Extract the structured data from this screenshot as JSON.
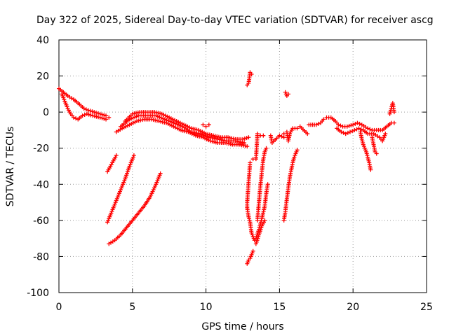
{
  "chart_data": {
    "type": "scatter",
    "title": "Day 322 of 2025, Sidereal Day-to-day VTEC variation (SDTVAR) for receiver ascg",
    "xlabel": "GPS time / hours",
    "ylabel": "SDTVAR / TECUs",
    "xlim": [
      0,
      25
    ],
    "ylim": [
      -100,
      40
    ],
    "xticks": [
      0,
      5,
      10,
      15,
      20,
      25
    ],
    "yticks": [
      -100,
      -80,
      -60,
      -40,
      -20,
      0,
      20,
      40
    ],
    "grid": true,
    "marker": "+",
    "color": "#ff0000",
    "segments": [
      {
        "name": "start-descent",
        "points": [
          [
            0.0,
            13
          ],
          [
            0.3,
            11
          ],
          [
            0.6,
            9
          ],
          [
            1.0,
            7
          ],
          [
            1.3,
            5
          ],
          [
            1.7,
            2
          ],
          [
            2.0,
            1
          ],
          [
            2.4,
            0
          ],
          [
            2.8,
            -1
          ],
          [
            3.2,
            -2
          ],
          [
            3.4,
            -3
          ]
        ]
      },
      {
        "name": "start-lower",
        "points": [
          [
            0.2,
            10
          ],
          [
            0.4,
            6
          ],
          [
            0.6,
            2
          ],
          [
            0.8,
            -1
          ],
          [
            1.0,
            -3
          ],
          [
            1.3,
            -4
          ],
          [
            1.6,
            -2
          ],
          [
            1.9,
            -1
          ],
          [
            2.3,
            -2
          ],
          [
            2.8,
            -3
          ],
          [
            3.2,
            -4
          ]
        ]
      },
      {
        "name": "morning-band-upper",
        "points": [
          [
            4.5,
            -5
          ],
          [
            5.0,
            -1
          ],
          [
            5.5,
            0
          ],
          [
            6.0,
            0
          ],
          [
            6.5,
            0
          ],
          [
            7.0,
            -1
          ],
          [
            7.5,
            -3
          ],
          [
            8.0,
            -5
          ],
          [
            8.5,
            -7
          ],
          [
            9.0,
            -9
          ],
          [
            9.5,
            -10
          ],
          [
            10.0,
            -12
          ],
          [
            10.5,
            -13
          ],
          [
            11.0,
            -14
          ],
          [
            11.5,
            -14
          ],
          [
            12.0,
            -15
          ],
          [
            12.5,
            -15
          ],
          [
            12.9,
            -14
          ]
        ]
      },
      {
        "name": "morning-band-lower",
        "points": [
          [
            3.9,
            -11
          ],
          [
            4.3,
            -9
          ],
          [
            4.8,
            -7
          ],
          [
            5.3,
            -5
          ],
          [
            5.8,
            -4
          ],
          [
            6.3,
            -4
          ],
          [
            6.8,
            -5
          ],
          [
            7.3,
            -6
          ],
          [
            7.8,
            -8
          ],
          [
            8.3,
            -10
          ],
          [
            8.8,
            -11
          ],
          [
            9.3,
            -13
          ],
          [
            9.8,
            -14
          ],
          [
            10.3,
            -16
          ],
          [
            10.8,
            -17
          ],
          [
            11.3,
            -17
          ],
          [
            11.8,
            -18
          ],
          [
            12.3,
            -18
          ],
          [
            12.8,
            -19
          ]
        ]
      },
      {
        "name": "morning-band-mid",
        "points": [
          [
            4.2,
            -8
          ],
          [
            4.8,
            -4
          ],
          [
            5.4,
            -2
          ],
          [
            6.0,
            -2
          ],
          [
            6.6,
            -2
          ],
          [
            7.2,
            -4
          ],
          [
            7.8,
            -6
          ],
          [
            8.4,
            -8
          ],
          [
            9.0,
            -11
          ],
          [
            9.6,
            -12
          ],
          [
            10.2,
            -14
          ],
          [
            10.8,
            -15
          ],
          [
            11.4,
            -16
          ],
          [
            12.0,
            -16
          ],
          [
            12.6,
            -17
          ]
        ]
      },
      {
        "name": "blob-9-10",
        "points": [
          [
            9.8,
            -7
          ],
          [
            10.0,
            -8
          ],
          [
            10.2,
            -7
          ]
        ]
      },
      {
        "name": "diag-1",
        "points": [
          [
            3.3,
            -33
          ],
          [
            3.5,
            -30
          ],
          [
            3.7,
            -27
          ],
          [
            3.9,
            -24
          ]
        ]
      },
      {
        "name": "diag-2",
        "points": [
          [
            3.3,
            -61
          ],
          [
            3.6,
            -55
          ],
          [
            3.9,
            -49
          ],
          [
            4.2,
            -43
          ],
          [
            4.5,
            -37
          ],
          [
            4.8,
            -30
          ],
          [
            5.1,
            -24
          ]
        ]
      },
      {
        "name": "diag-3",
        "points": [
          [
            3.4,
            -73
          ],
          [
            3.8,
            -71
          ],
          [
            4.2,
            -68
          ],
          [
            4.6,
            -64
          ],
          [
            5.0,
            -60
          ],
          [
            5.4,
            -56
          ],
          [
            5.8,
            -52
          ],
          [
            6.2,
            -47
          ],
          [
            6.6,
            -40
          ],
          [
            6.9,
            -34
          ]
        ]
      },
      {
        "name": "spike-13",
        "points": [
          [
            12.8,
            15
          ],
          [
            12.9,
            16
          ],
          [
            13.0,
            22
          ],
          [
            13.1,
            21
          ]
        ]
      },
      {
        "name": "scatter-13",
        "points": [
          [
            13.0,
            -28
          ],
          [
            12.9,
            -39
          ],
          [
            12.8,
            -50
          ],
          [
            12.8,
            -53
          ],
          [
            12.9,
            -58
          ],
          [
            13.0,
            -61
          ],
          [
            13.1,
            -67
          ],
          [
            13.3,
            -71
          ]
        ]
      },
      {
        "name": "drop-13",
        "points": [
          [
            12.8,
            -84
          ],
          [
            12.9,
            -82
          ],
          [
            13.0,
            -81
          ],
          [
            13.1,
            -79
          ],
          [
            13.2,
            -77
          ]
        ]
      },
      {
        "name": "rise-13-14",
        "points": [
          [
            13.5,
            -60
          ],
          [
            13.6,
            -50
          ],
          [
            13.7,
            -41
          ],
          [
            13.8,
            -33
          ],
          [
            13.9,
            -26
          ],
          [
            14.0,
            -22
          ],
          [
            14.1,
            -20
          ]
        ]
      },
      {
        "name": "rise-13-14b",
        "points": [
          [
            13.4,
            -70
          ],
          [
            13.6,
            -65
          ],
          [
            13.8,
            -59
          ],
          [
            14.0,
            -52
          ],
          [
            14.1,
            -45
          ],
          [
            14.2,
            -40
          ]
        ]
      },
      {
        "name": "rise-13-14c",
        "points": [
          [
            13.4,
            -73
          ],
          [
            13.6,
            -68
          ],
          [
            13.8,
            -63
          ],
          [
            14.0,
            -60
          ]
        ]
      },
      {
        "name": "bits-13-14",
        "points": [
          [
            13.2,
            -26
          ],
          [
            13.4,
            -26
          ],
          [
            13.5,
            -12
          ],
          [
            13.7,
            -13
          ],
          [
            13.9,
            -13
          ]
        ]
      },
      {
        "name": "mid-14-15",
        "points": [
          [
            14.4,
            -13
          ],
          [
            14.5,
            -17
          ],
          [
            15.0,
            -13
          ],
          [
            15.3,
            -14
          ]
        ]
      },
      {
        "name": "spike-15",
        "points": [
          [
            15.4,
            11
          ],
          [
            15.5,
            9
          ],
          [
            15.6,
            10
          ]
        ]
      },
      {
        "name": "rise-15-16",
        "points": [
          [
            15.3,
            -60
          ],
          [
            15.4,
            -55
          ],
          [
            15.5,
            -48
          ],
          [
            15.6,
            -42
          ],
          [
            15.7,
            -36
          ],
          [
            15.8,
            -32
          ],
          [
            15.9,
            -28
          ],
          [
            16.0,
            -25
          ],
          [
            16.2,
            -21
          ]
        ]
      },
      {
        "name": "bits-15-16",
        "points": [
          [
            15.3,
            -12
          ],
          [
            15.5,
            -11
          ],
          [
            15.6,
            -16
          ],
          [
            15.7,
            -12
          ],
          [
            15.9,
            -9
          ],
          [
            16.2,
            -9
          ],
          [
            16.4,
            -8
          ],
          [
            16.9,
            -12
          ]
        ]
      },
      {
        "name": "evening-band",
        "points": [
          [
            17.0,
            -7
          ],
          [
            17.5,
            -7
          ],
          [
            17.8,
            -6
          ],
          [
            18.0,
            -4
          ],
          [
            18.2,
            -3
          ],
          [
            18.5,
            -3
          ],
          [
            18.8,
            -5
          ],
          [
            19.0,
            -7
          ],
          [
            19.3,
            -8
          ],
          [
            19.6,
            -8
          ],
          [
            20.0,
            -7
          ],
          [
            20.3,
            -6
          ],
          [
            20.6,
            -7
          ],
          [
            21.0,
            -9
          ],
          [
            21.3,
            -10
          ],
          [
            21.6,
            -10
          ],
          [
            22.0,
            -10
          ],
          [
            22.3,
            -8
          ],
          [
            22.6,
            -6
          ],
          [
            22.8,
            -6
          ]
        ]
      },
      {
        "name": "evening-band-2",
        "points": [
          [
            18.9,
            -9
          ],
          [
            19.2,
            -11
          ],
          [
            19.5,
            -12
          ],
          [
            19.8,
            -11
          ],
          [
            20.1,
            -10
          ],
          [
            20.4,
            -9
          ],
          [
            20.7,
            -10
          ],
          [
            21.0,
            -12
          ],
          [
            21.4,
            -12
          ],
          [
            21.8,
            -14
          ],
          [
            22.0,
            -16
          ],
          [
            22.2,
            -12
          ]
        ]
      },
      {
        "name": "dip-20-21",
        "points": [
          [
            20.5,
            -11
          ],
          [
            20.6,
            -15
          ],
          [
            20.7,
            -18
          ],
          [
            20.8,
            -20
          ],
          [
            20.9,
            -22
          ],
          [
            21.0,
            -25
          ],
          [
            21.1,
            -28
          ],
          [
            21.2,
            -32
          ]
        ]
      },
      {
        "name": "dip-21-22",
        "points": [
          [
            21.3,
            -14
          ],
          [
            21.4,
            -18
          ],
          [
            21.5,
            -22
          ],
          [
            21.6,
            -23
          ]
        ]
      },
      {
        "name": "spike-22",
        "points": [
          [
            22.5,
            -1
          ],
          [
            22.6,
            2
          ],
          [
            22.7,
            5
          ],
          [
            22.8,
            0
          ]
        ]
      }
    ]
  }
}
